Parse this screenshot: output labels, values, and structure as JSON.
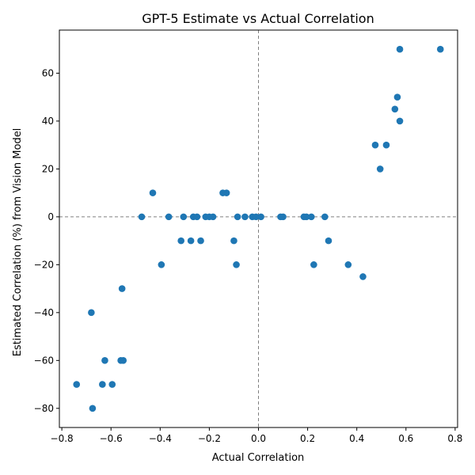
{
  "chart_data": {
    "type": "scatter",
    "title": "GPT-5 Estimate vs Actual Correlation",
    "xlabel": "Actual Correlation",
    "ylabel": "Estimated Correlation (%) from Vision Model",
    "xlim": [
      -0.81,
      0.81
    ],
    "ylim": [
      -88,
      78
    ],
    "xticks": [
      -0.8,
      -0.6,
      -0.4,
      -0.2,
      0.0,
      0.2,
      0.4,
      0.6,
      0.8
    ],
    "xtick_labels": [
      "−0.8",
      "−0.6",
      "−0.4",
      "−0.2",
      "0.0",
      "0.2",
      "0.4",
      "0.6",
      "0.8"
    ],
    "yticks": [
      -80,
      -60,
      -40,
      -20,
      0,
      20,
      40,
      60
    ],
    "ytick_labels": [
      "−80",
      "−60",
      "−40",
      "−20",
      "0",
      "20",
      "40",
      "60"
    ],
    "reference_lines": {
      "x": 0,
      "y": 0,
      "style": "dashed",
      "color": "#808080"
    },
    "marker_color": "#1f77b4",
    "points": [
      {
        "x": -0.74,
        "y": -70
      },
      {
        "x": -0.68,
        "y": -40
      },
      {
        "x": -0.675,
        "y": -80
      },
      {
        "x": -0.635,
        "y": -70
      },
      {
        "x": -0.625,
        "y": -60
      },
      {
        "x": -0.595,
        "y": -70
      },
      {
        "x": -0.56,
        "y": -60
      },
      {
        "x": -0.55,
        "y": -60
      },
      {
        "x": -0.555,
        "y": -30
      },
      {
        "x": -0.475,
        "y": 0
      },
      {
        "x": -0.43,
        "y": 10
      },
      {
        "x": -0.395,
        "y": -20
      },
      {
        "x": -0.365,
        "y": 0
      },
      {
        "x": -0.315,
        "y": -10
      },
      {
        "x": -0.305,
        "y": 0
      },
      {
        "x": -0.275,
        "y": -10
      },
      {
        "x": -0.265,
        "y": 0
      },
      {
        "x": -0.25,
        "y": 0
      },
      {
        "x": -0.235,
        "y": -10
      },
      {
        "x": -0.215,
        "y": 0
      },
      {
        "x": -0.2,
        "y": 0
      },
      {
        "x": -0.185,
        "y": 0
      },
      {
        "x": -0.145,
        "y": 10
      },
      {
        "x": -0.13,
        "y": 10
      },
      {
        "x": -0.1,
        "y": -10
      },
      {
        "x": -0.09,
        "y": -20
      },
      {
        "x": -0.085,
        "y": 0
      },
      {
        "x": -0.055,
        "y": 0
      },
      {
        "x": -0.025,
        "y": 0
      },
      {
        "x": -0.01,
        "y": 0
      },
      {
        "x": 0.01,
        "y": 0
      },
      {
        "x": 0.09,
        "y": 0
      },
      {
        "x": 0.1,
        "y": 0
      },
      {
        "x": 0.185,
        "y": 0
      },
      {
        "x": 0.195,
        "y": 0
      },
      {
        "x": 0.215,
        "y": 0
      },
      {
        "x": 0.225,
        "y": -20
      },
      {
        "x": 0.27,
        "y": 0
      },
      {
        "x": 0.285,
        "y": -10
      },
      {
        "x": 0.365,
        "y": -20
      },
      {
        "x": 0.425,
        "y": -25
      },
      {
        "x": 0.475,
        "y": 30
      },
      {
        "x": 0.495,
        "y": 20
      },
      {
        "x": 0.52,
        "y": 30
      },
      {
        "x": 0.555,
        "y": 45
      },
      {
        "x": 0.565,
        "y": 50
      },
      {
        "x": 0.575,
        "y": 40
      },
      {
        "x": 0.575,
        "y": 70
      },
      {
        "x": 0.74,
        "y": 70
      }
    ]
  }
}
